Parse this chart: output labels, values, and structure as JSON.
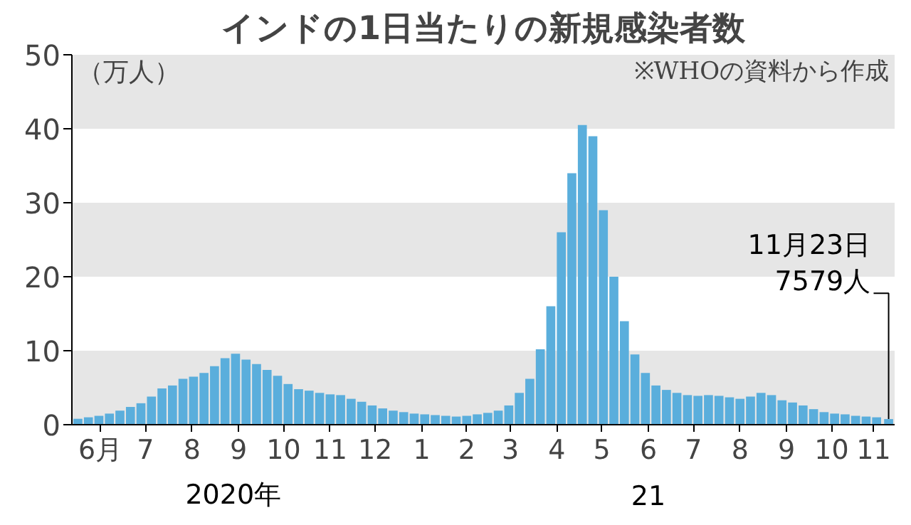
{
  "chart_data": {
    "type": "bar",
    "title": "インドの1日当たりの新規感染者数",
    "ylabel": "（万人）",
    "color": "#5aaedc",
    "x": [
      "2020-06-01",
      "2020-06-08",
      "2020-06-15",
      "2020-06-22",
      "2020-06-29",
      "2020-07-06",
      "2020-07-13",
      "2020-07-20",
      "2020-07-27",
      "2020-08-03",
      "2020-08-10",
      "2020-08-17",
      "2020-08-24",
      "2020-08-31",
      "2020-09-07",
      "2020-09-14",
      "2020-09-21",
      "2020-09-28",
      "2020-10-05",
      "2020-10-12",
      "2020-10-19",
      "2020-10-26",
      "2020-11-02",
      "2020-11-09",
      "2020-11-16",
      "2020-11-23",
      "2020-11-30",
      "2020-12-07",
      "2020-12-14",
      "2020-12-21",
      "2020-12-28",
      "2021-01-04",
      "2021-01-11",
      "2021-01-18",
      "2021-01-25",
      "2021-02-01",
      "2021-02-08",
      "2021-02-15",
      "2021-02-22",
      "2021-03-01",
      "2021-03-08",
      "2021-03-15",
      "2021-03-22",
      "2021-03-29",
      "2021-04-05",
      "2021-04-12",
      "2021-04-19",
      "2021-04-26",
      "2021-05-03",
      "2021-05-10",
      "2021-05-17",
      "2021-05-24",
      "2021-05-31",
      "2021-06-07",
      "2021-06-14",
      "2021-06-21",
      "2021-06-28",
      "2021-07-05",
      "2021-07-12",
      "2021-07-19",
      "2021-07-26",
      "2021-08-02",
      "2021-08-09",
      "2021-08-16",
      "2021-08-23",
      "2021-08-30",
      "2021-09-06",
      "2021-09-13",
      "2021-09-20",
      "2021-09-27",
      "2021-10-04",
      "2021-10-11",
      "2021-10-18",
      "2021-10-25",
      "2021-11-01",
      "2021-11-08",
      "2021-11-15",
      "2021-11-23"
    ],
    "values": [
      0.8,
      1.0,
      1.2,
      1.5,
      1.9,
      2.4,
      2.9,
      3.8,
      4.9,
      5.3,
      6.2,
      6.5,
      7.0,
      7.9,
      9.0,
      9.6,
      8.8,
      8.2,
      7.4,
      6.6,
      5.5,
      4.8,
      4.6,
      4.3,
      4.1,
      4.0,
      3.5,
      3.1,
      2.6,
      2.2,
      1.9,
      1.7,
      1.5,
      1.4,
      1.3,
      1.2,
      1.1,
      1.2,
      1.4,
      1.6,
      1.9,
      2.6,
      4.3,
      6.2,
      10.2,
      16.0,
      26.0,
      34.0,
      40.5,
      39.0,
      29.0,
      20.0,
      14.0,
      9.5,
      7.0,
      5.3,
      4.7,
      4.3,
      4.0,
      3.9,
      4.0,
      3.9,
      3.7,
      3.5,
      3.8,
      4.3,
      4.0,
      3.3,
      3.0,
      2.6,
      2.1,
      1.7,
      1.5,
      1.4,
      1.2,
      1.1,
      1.0,
      0.7579
    ],
    "xlim": [
      "2020-05-28",
      "2021-11-27"
    ],
    "xticks": [
      {
        "value": "2020-06-16",
        "label": "6月"
      },
      {
        "value": "2020-07-16",
        "label": "7"
      },
      {
        "value": "2020-08-16",
        "label": "8"
      },
      {
        "value": "2020-09-16",
        "label": "9"
      },
      {
        "value": "2020-10-16",
        "label": "10"
      },
      {
        "value": "2020-11-16",
        "label": "11"
      },
      {
        "value": "2020-12-16",
        "label": "12"
      },
      {
        "value": "2021-01-16",
        "label": "1"
      },
      {
        "value": "2021-02-15",
        "label": "2"
      },
      {
        "value": "2021-03-16",
        "label": "3"
      },
      {
        "value": "2021-04-16",
        "label": "4"
      },
      {
        "value": "2021-05-16",
        "label": "5"
      },
      {
        "value": "2021-06-16",
        "label": "6"
      },
      {
        "value": "2021-07-16",
        "label": "7"
      },
      {
        "value": "2021-08-16",
        "label": "8"
      },
      {
        "value": "2021-09-16",
        "label": "9"
      },
      {
        "value": "2021-10-16",
        "label": "10"
      },
      {
        "value": "2021-11-13",
        "label": "11"
      }
    ],
    "ylim": [
      0,
      50
    ],
    "yticks": [
      0,
      10,
      20,
      30,
      40,
      50
    ],
    "grid": false,
    "bands": [
      {
        "axis": "y",
        "from": 0,
        "to": 10,
        "color": "#e6e6e6"
      },
      {
        "axis": "y",
        "from": 20,
        "to": 30,
        "color": "#e6e6e6"
      },
      {
        "axis": "y",
        "from": 40,
        "to": 50,
        "color": "#e6e6e6"
      }
    ],
    "annotations": [
      "※WHOの資料から作成",
      {
        "text": "11月23日\n7579人",
        "x": "2021-11-23",
        "y": 0.7579
      },
      "2020年",
      "21"
    ]
  }
}
